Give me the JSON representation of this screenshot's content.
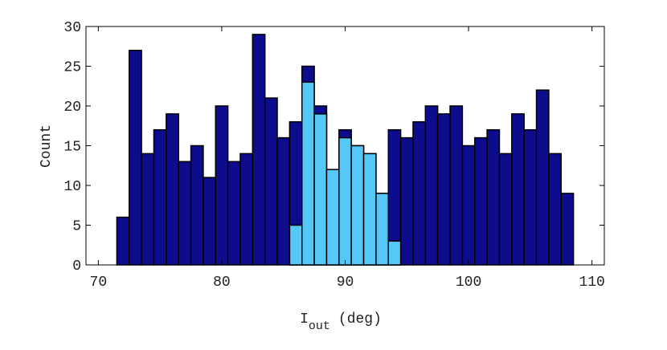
{
  "chart_data": {
    "type": "histogram",
    "xlabel": "I",
    "xlabel_sub": "out",
    "xlabel_unit": "(deg)",
    "ylabel": "Count",
    "xlim": [
      69,
      111
    ],
    "xticks": [
      70,
      80,
      90,
      100,
      110
    ],
    "ylim": [
      0,
      30
    ],
    "yticks": [
      0,
      5,
      10,
      15,
      20,
      25,
      30
    ],
    "series": [
      {
        "color": "#0c0c8c",
        "bins": [
          70.5,
          71.5,
          72.5,
          73.5,
          74.5,
          75.5,
          76.5,
          77.5,
          78.5,
          79.5,
          80.5,
          81.5,
          82.5,
          83.5,
          84.5,
          85.5,
          86.5,
          87.5,
          88.5,
          89.5,
          90.5,
          91.5,
          92.5,
          93.5,
          94.5,
          95.5,
          96.5,
          97.5,
          98.5,
          99.5,
          100.5,
          101.5,
          102.5,
          103.5,
          104.5,
          105.5,
          106.5,
          107.5,
          108.5,
          109.5
        ],
        "values": [
          0,
          6,
          27,
          14,
          17,
          19,
          13,
          15,
          11,
          20,
          13,
          14,
          29,
          21,
          16,
          18,
          25,
          20,
          12,
          17,
          15,
          14,
          9,
          17,
          16,
          18,
          20,
          19,
          20,
          15,
          16,
          17,
          14,
          19,
          17,
          22,
          14,
          9,
          0
        ]
      },
      {
        "color": "#55c8f8",
        "bins": [
          85.5,
          86.5,
          87.5,
          88.5,
          89.5,
          90.5,
          91.5,
          92.5,
          93.5,
          94.5
        ],
        "values": [
          5,
          23,
          19,
          12,
          16,
          15,
          14,
          9,
          3
        ]
      }
    ]
  }
}
